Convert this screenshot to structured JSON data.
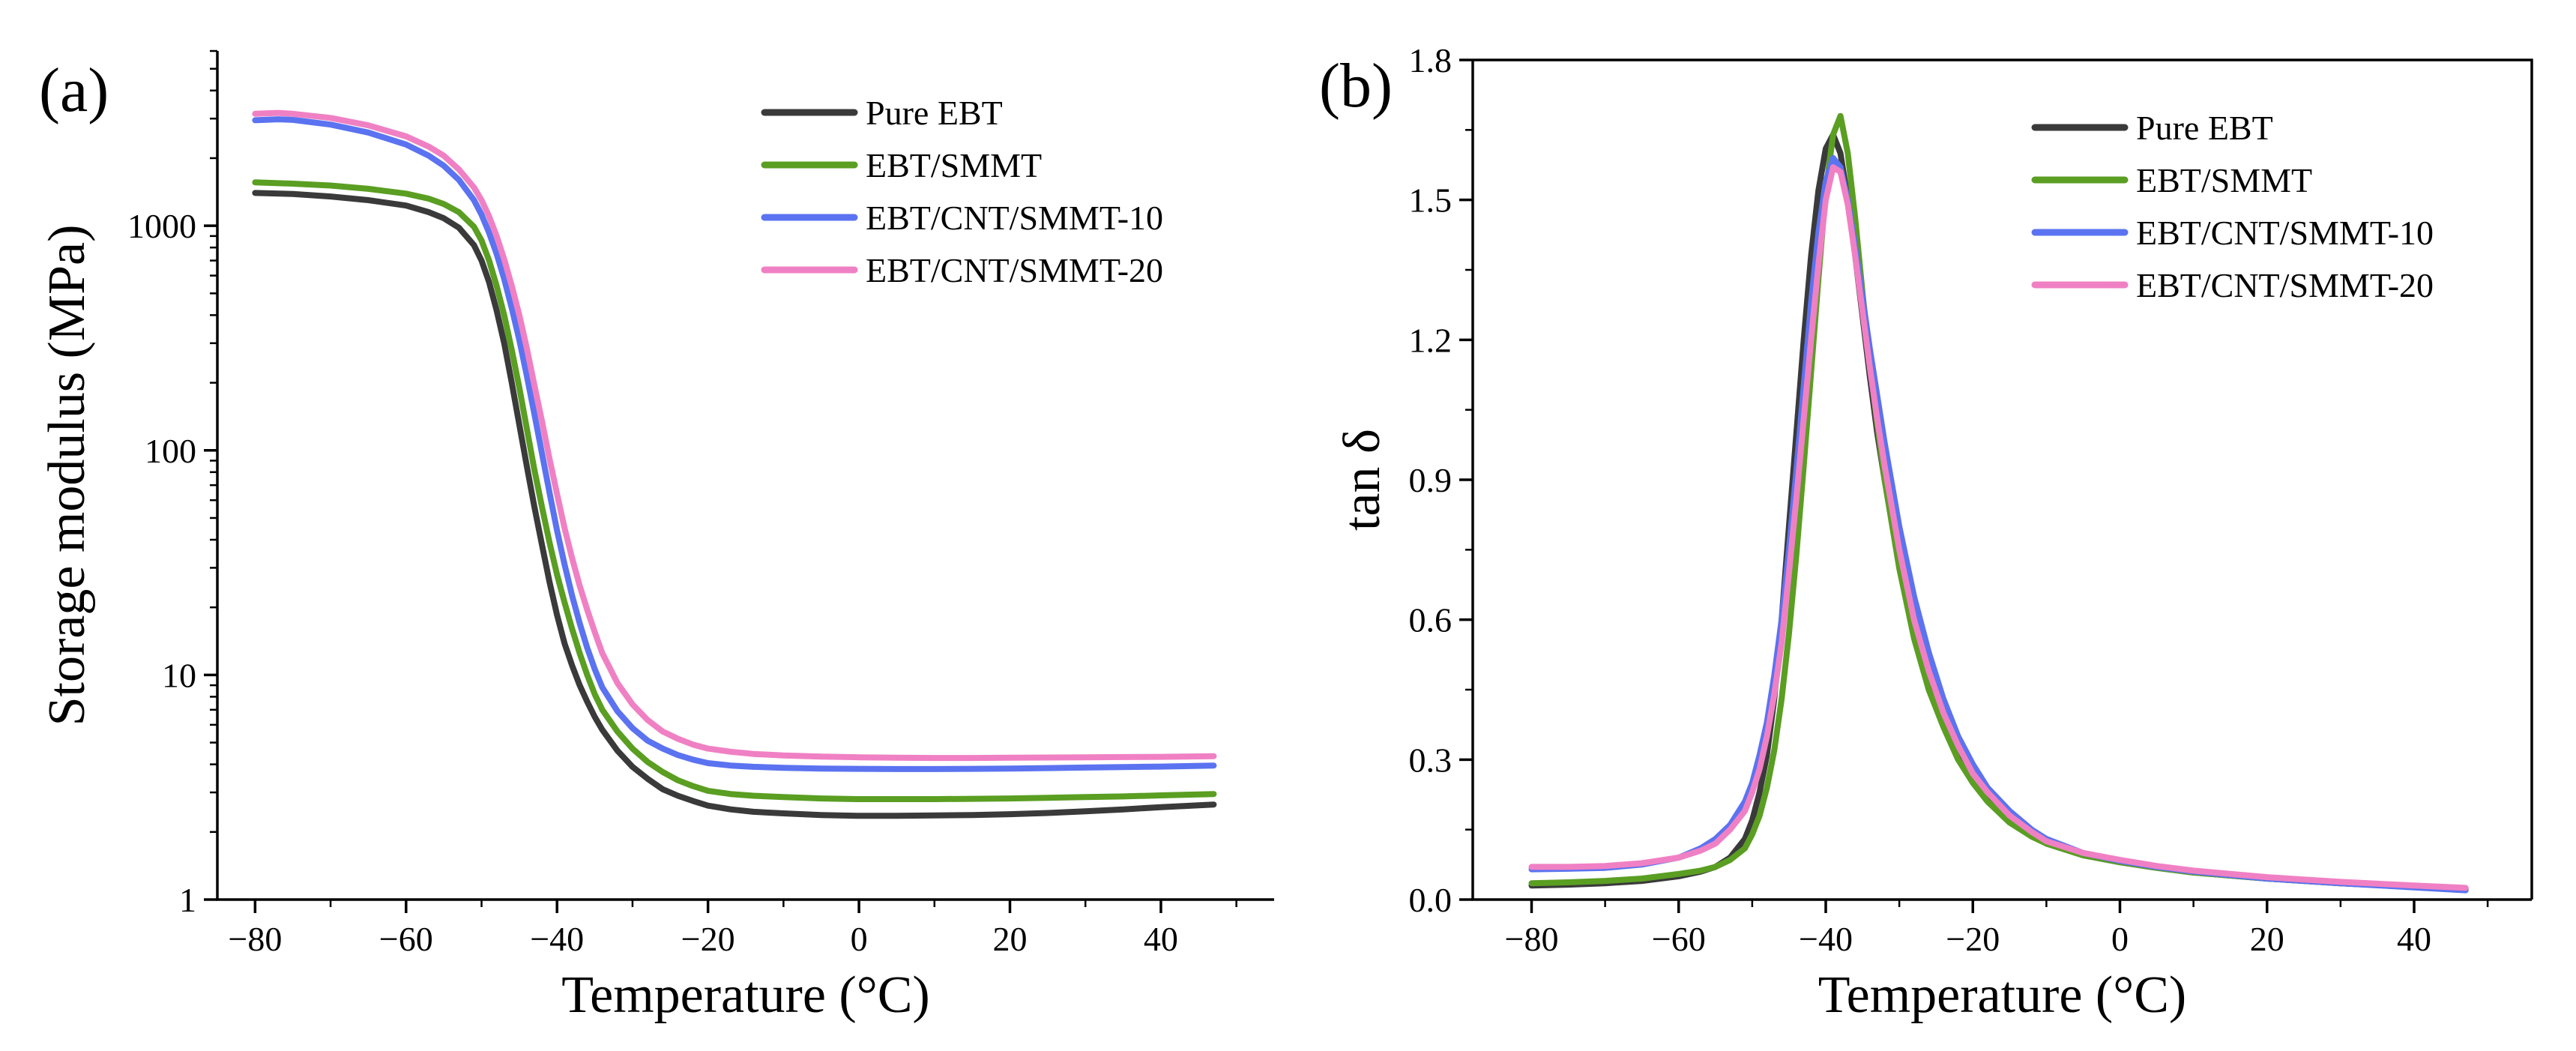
{
  "chart_data": [
    {
      "type": "line",
      "panel_label": "(a)",
      "xlabel": "Temperature (°C)",
      "ylabel": "Storage modulus (MPa)",
      "xlim": [
        -85,
        55
      ],
      "ylim": [
        1,
        6000
      ],
      "yscale": "log",
      "xticks": [
        -80,
        -60,
        -40,
        -20,
        0,
        20,
        40
      ],
      "xtick_labels": [
        "−80",
        "−60",
        "−40",
        "−20",
        "0",
        "20",
        "40"
      ],
      "yticks": [
        1,
        10,
        100,
        1000
      ],
      "ytick_labels": [
        "1",
        "10",
        "100",
        "1000"
      ],
      "legend_position": "top-right",
      "grid": false,
      "series": [
        {
          "name": "Pure EBT",
          "color": "#3a3a3a",
          "x": [
            -80,
            -75,
            -70,
            -65,
            -60,
            -57,
            -55,
            -53,
            -51,
            -50,
            -49,
            -48,
            -47,
            -46,
            -45,
            -44,
            -43,
            -42,
            -41,
            -40,
            -39,
            -38,
            -37,
            -36,
            -35,
            -34,
            -32,
            -30,
            -28,
            -26,
            -24,
            -22,
            -20,
            -17,
            -14,
            -10,
            -5,
            0,
            5,
            10,
            15,
            20,
            25,
            30,
            35,
            40,
            47
          ],
          "y": [
            1400,
            1385,
            1350,
            1300,
            1230,
            1150,
            1080,
            980,
            820,
            700,
            560,
            420,
            300,
            200,
            130,
            85,
            56,
            38,
            26,
            18.5,
            13.8,
            11,
            9,
            7.6,
            6.5,
            5.7,
            4.6,
            3.9,
            3.45,
            3.1,
            2.9,
            2.75,
            2.62,
            2.52,
            2.46,
            2.42,
            2.38,
            2.36,
            2.36,
            2.37,
            2.38,
            2.4,
            2.43,
            2.47,
            2.52,
            2.58,
            2.65
          ]
        },
        {
          "name": "EBT/SMMT",
          "color": "#5a9e22",
          "x": [
            -80,
            -75,
            -70,
            -65,
            -60,
            -57,
            -55,
            -53,
            -51,
            -50,
            -49,
            -48,
            -47,
            -46,
            -45,
            -44,
            -43,
            -42,
            -41,
            -40,
            -39,
            -38,
            -37,
            -36,
            -35,
            -34,
            -32,
            -30,
            -28,
            -26,
            -24,
            -22,
            -20,
            -17,
            -14,
            -10,
            -5,
            0,
            5,
            10,
            15,
            20,
            25,
            30,
            35,
            40,
            47
          ],
          "y": [
            1560,
            1540,
            1510,
            1460,
            1390,
            1320,
            1250,
            1150,
            990,
            860,
            700,
            540,
            400,
            280,
            190,
            125,
            82,
            56,
            39,
            28,
            21,
            16,
            12.5,
            10,
            8.2,
            7,
            5.6,
            4.7,
            4.1,
            3.7,
            3.4,
            3.2,
            3.05,
            2.95,
            2.9,
            2.86,
            2.82,
            2.8,
            2.8,
            2.8,
            2.81,
            2.82,
            2.84,
            2.86,
            2.88,
            2.91,
            2.95
          ]
        },
        {
          "name": "EBT/CNT/SMMT-10",
          "color": "#5b73f0",
          "x": [
            -80,
            -77,
            -75,
            -70,
            -65,
            -60,
            -57,
            -55,
            -53,
            -51,
            -50,
            -49,
            -48,
            -47,
            -46,
            -45,
            -44,
            -43,
            -42,
            -41,
            -40,
            -39,
            -38,
            -37,
            -36,
            -35,
            -34,
            -32,
            -30,
            -28,
            -26,
            -24,
            -22,
            -20,
            -17,
            -14,
            -10,
            -5,
            0,
            5,
            10,
            15,
            20,
            25,
            30,
            35,
            40,
            47
          ],
          "y": [
            2950,
            2980,
            2960,
            2820,
            2600,
            2300,
            2050,
            1850,
            1600,
            1300,
            1120,
            930,
            750,
            580,
            430,
            310,
            215,
            145,
            97,
            65,
            44,
            31,
            22.5,
            17,
            13.2,
            10.6,
            8.8,
            6.9,
            5.8,
            5.1,
            4.7,
            4.4,
            4.2,
            4.05,
            3.95,
            3.9,
            3.86,
            3.83,
            3.82,
            3.81,
            3.81,
            3.82,
            3.83,
            3.85,
            3.87,
            3.89,
            3.91,
            3.95
          ]
        },
        {
          "name": "EBT/CNT/SMMT-20",
          "color": "#f080c4",
          "x": [
            -80,
            -77,
            -75,
            -70,
            -65,
            -60,
            -57,
            -55,
            -53,
            -51,
            -50,
            -49,
            -48,
            -47,
            -46,
            -45,
            -44,
            -43,
            -42,
            -41,
            -40,
            -39,
            -38,
            -37,
            -36,
            -35,
            -34,
            -32,
            -30,
            -28,
            -26,
            -24,
            -22,
            -20,
            -17,
            -14,
            -10,
            -5,
            0,
            5,
            10,
            15,
            20,
            25,
            30,
            35,
            40,
            47
          ],
          "y": [
            3150,
            3180,
            3150,
            3020,
            2800,
            2500,
            2250,
            2050,
            1780,
            1480,
            1300,
            1100,
            900,
            710,
            540,
            400,
            285,
            195,
            135,
            92,
            64,
            45,
            33,
            25,
            19.5,
            15.5,
            12.5,
            9.2,
            7.4,
            6.3,
            5.6,
            5.2,
            4.9,
            4.7,
            4.55,
            4.45,
            4.38,
            4.33,
            4.3,
            4.28,
            4.27,
            4.27,
            4.28,
            4.29,
            4.3,
            4.31,
            4.32,
            4.35
          ]
        }
      ]
    },
    {
      "type": "line",
      "panel_label": "(b)",
      "xlabel": "Temperature (°C)",
      "ylabel": "tan δ",
      "xlim": [
        -88,
        56
      ],
      "ylim": [
        0,
        1.8
      ],
      "yscale": "linear",
      "xticks": [
        -80,
        -60,
        -40,
        -20,
        0,
        20,
        40
      ],
      "xtick_labels": [
        "−80",
        "−60",
        "−40",
        "−20",
        "0",
        "20",
        "40"
      ],
      "yticks": [
        0,
        0.3,
        0.6,
        0.9,
        1.2,
        1.5,
        1.8
      ],
      "ytick_labels": [
        "0.0",
        "0.3",
        "0.6",
        "0.9",
        "1.2",
        "1.5",
        "1.8"
      ],
      "legend_position": "top-right",
      "grid": false,
      "series": [
        {
          "name": "Pure EBT",
          "color": "#3a3a3a",
          "x": [
            -80,
            -75,
            -70,
            -65,
            -60,
            -57,
            -55,
            -53,
            -51,
            -50,
            -49,
            -48,
            -47,
            -46,
            -45,
            -44,
            -43,
            -42,
            -41,
            -40,
            -39,
            -38,
            -37,
            -36,
            -35,
            -34,
            -33,
            -32,
            -30,
            -28,
            -26,
            -24,
            -22,
            -20,
            -18,
            -15,
            -12,
            -10,
            -5,
            0,
            5,
            10,
            20,
            30,
            40,
            47
          ],
          "y": [
            0.03,
            0.032,
            0.035,
            0.04,
            0.05,
            0.06,
            0.07,
            0.09,
            0.13,
            0.17,
            0.23,
            0.31,
            0.43,
            0.6,
            0.8,
            1.0,
            1.2,
            1.38,
            1.52,
            1.61,
            1.64,
            1.6,
            1.5,
            1.38,
            1.25,
            1.12,
            1.0,
            0.9,
            0.72,
            0.58,
            0.47,
            0.38,
            0.31,
            0.26,
            0.22,
            0.17,
            0.14,
            0.12,
            0.095,
            0.08,
            0.068,
            0.058,
            0.045,
            0.035,
            0.027,
            0.022
          ]
        },
        {
          "name": "EBT/SMMT",
          "color": "#5a9e22",
          "x": [
            -80,
            -75,
            -70,
            -65,
            -60,
            -57,
            -55,
            -53,
            -51,
            -50,
            -49,
            -48,
            -47,
            -46,
            -45,
            -44,
            -43,
            -42,
            -41,
            -40,
            -39,
            -38,
            -37,
            -36,
            -35,
            -34,
            -33,
            -32,
            -30,
            -28,
            -26,
            -24,
            -22,
            -20,
            -18,
            -15,
            -12,
            -10,
            -5,
            0,
            5,
            10,
            20,
            30,
            40,
            47
          ],
          "y": [
            0.035,
            0.037,
            0.04,
            0.045,
            0.055,
            0.062,
            0.07,
            0.085,
            0.11,
            0.14,
            0.18,
            0.24,
            0.32,
            0.43,
            0.57,
            0.74,
            0.93,
            1.13,
            1.33,
            1.52,
            1.64,
            1.68,
            1.6,
            1.46,
            1.3,
            1.15,
            1.02,
            0.9,
            0.71,
            0.56,
            0.45,
            0.37,
            0.3,
            0.25,
            0.21,
            0.165,
            0.135,
            0.12,
            0.095,
            0.08,
            0.068,
            0.058,
            0.045,
            0.035,
            0.028,
            0.024
          ]
        },
        {
          "name": "EBT/CNT/SMMT-10",
          "color": "#5b73f0",
          "x": [
            -80,
            -75,
            -70,
            -65,
            -60,
            -57,
            -55,
            -53,
            -51,
            -50,
            -49,
            -48,
            -47,
            -46,
            -45,
            -44,
            -43,
            -42,
            -41,
            -40,
            -39,
            -38,
            -37,
            -36,
            -35,
            -34,
            -33,
            -32,
            -30,
            -28,
            -26,
            -24,
            -22,
            -20,
            -18,
            -15,
            -12,
            -10,
            -5,
            0,
            5,
            10,
            20,
            30,
            40,
            47
          ],
          "y": [
            0.065,
            0.066,
            0.068,
            0.075,
            0.09,
            0.11,
            0.13,
            0.16,
            0.21,
            0.25,
            0.31,
            0.38,
            0.48,
            0.6,
            0.75,
            0.92,
            1.1,
            1.28,
            1.43,
            1.54,
            1.59,
            1.57,
            1.5,
            1.4,
            1.29,
            1.18,
            1.08,
            0.98,
            0.8,
            0.65,
            0.53,
            0.43,
            0.35,
            0.29,
            0.24,
            0.19,
            0.15,
            0.13,
            0.1,
            0.083,
            0.07,
            0.06,
            0.045,
            0.035,
            0.026,
            0.02
          ]
        },
        {
          "name": "EBT/CNT/SMMT-20",
          "color": "#f080c4",
          "x": [
            -80,
            -75,
            -70,
            -65,
            -60,
            -57,
            -55,
            -53,
            -51,
            -50,
            -49,
            -48,
            -47,
            -46,
            -45,
            -44,
            -43,
            -42,
            -41,
            -40,
            -39,
            -38,
            -37,
            -36,
            -35,
            -34,
            -33,
            -32,
            -30,
            -28,
            -26,
            -24,
            -22,
            -20,
            -18,
            -15,
            -12,
            -10,
            -5,
            0,
            5,
            10,
            20,
            30,
            40,
            47
          ],
          "y": [
            0.07,
            0.07,
            0.072,
            0.078,
            0.09,
            0.105,
            0.12,
            0.15,
            0.19,
            0.23,
            0.28,
            0.35,
            0.44,
            0.55,
            0.7,
            0.86,
            1.03,
            1.2,
            1.36,
            1.5,
            1.57,
            1.56,
            1.49,
            1.38,
            1.26,
            1.14,
            1.03,
            0.93,
            0.75,
            0.6,
            0.49,
            0.4,
            0.33,
            0.27,
            0.23,
            0.18,
            0.145,
            0.125,
            0.1,
            0.085,
            0.072,
            0.062,
            0.048,
            0.038,
            0.03,
            0.025
          ]
        }
      ]
    }
  ]
}
